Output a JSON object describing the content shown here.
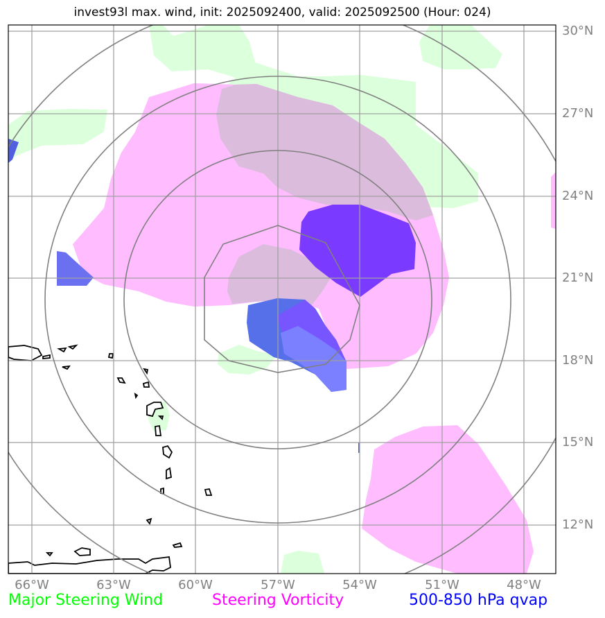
{
  "title": "invest93l max. wind, init: 2025092400, valid: 2025092500 (Hour: 024)",
  "map": {
    "lat_labels": [
      "30°N",
      "27°N",
      "24°N",
      "21°N",
      "18°N",
      "15°N",
      "12°N"
    ],
    "lon_labels": [
      "66°W",
      "63°W",
      "60°W",
      "57°W",
      "54°W",
      "51°W",
      "48°W"
    ],
    "center": {
      "lat": "19.7°N",
      "lon": "57.0°W"
    },
    "range_rings": 4
  },
  "legend": {
    "green_label": "Major Steering Wind",
    "magenta_label": "Steering Vorticity",
    "blue_label": "500-850 hPa qvap"
  },
  "colors": {
    "steering_wind": "#00ff00",
    "steering_vorticity": "#ff00ff",
    "qvap": "#0000ff",
    "wind_fill": "#dcffdc",
    "vorticity_fill": "#ffbcff",
    "qvap_fill": "#7070ff",
    "grid": "#a0a0a0",
    "rings": "#808080"
  }
}
